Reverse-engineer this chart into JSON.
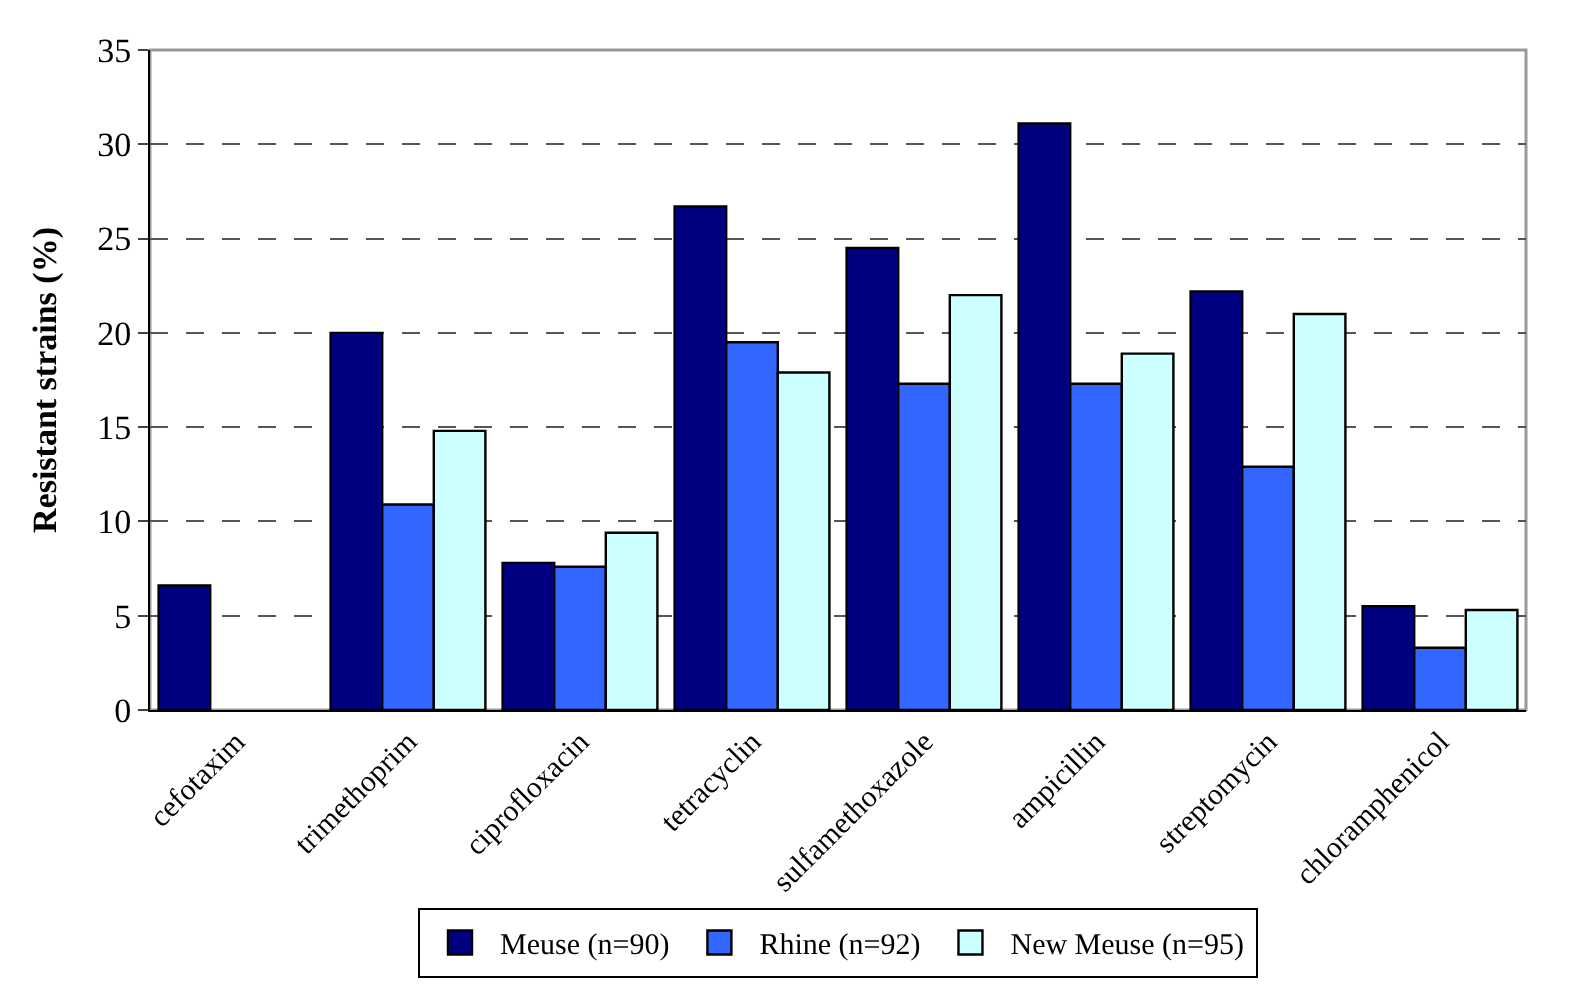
{
  "chart_data": {
    "type": "bar",
    "ylabel": "Resistant strains (%)",
    "categories": [
      "cefotaxim",
      "trimethoprim",
      "ciprofloxacin",
      "tetracyclin",
      "sulfamethoxazole",
      "ampicillin",
      "streptomycin",
      "chloramphenicol"
    ],
    "series": [
      {
        "name": "Meuse (n=90)",
        "color": "#000080",
        "values": [
          6.6,
          20.0,
          7.8,
          26.7,
          24.5,
          31.1,
          22.2,
          5.5
        ]
      },
      {
        "name": "Rhine (n=92)",
        "color": "#3366ff",
        "values": [
          null,
          10.9,
          7.6,
          19.5,
          17.3,
          17.3,
          12.9,
          3.3
        ]
      },
      {
        "name": "New Meuse (n=95)",
        "color": "#ccffff",
        "values": [
          null,
          14.8,
          9.4,
          17.9,
          22.0,
          18.9,
          21.0,
          5.3
        ]
      }
    ],
    "ylim": [
      0,
      35
    ],
    "yticks": [
      0,
      5,
      10,
      15,
      20,
      25,
      30,
      35
    ],
    "grid": "y",
    "legend": "bottom"
  }
}
